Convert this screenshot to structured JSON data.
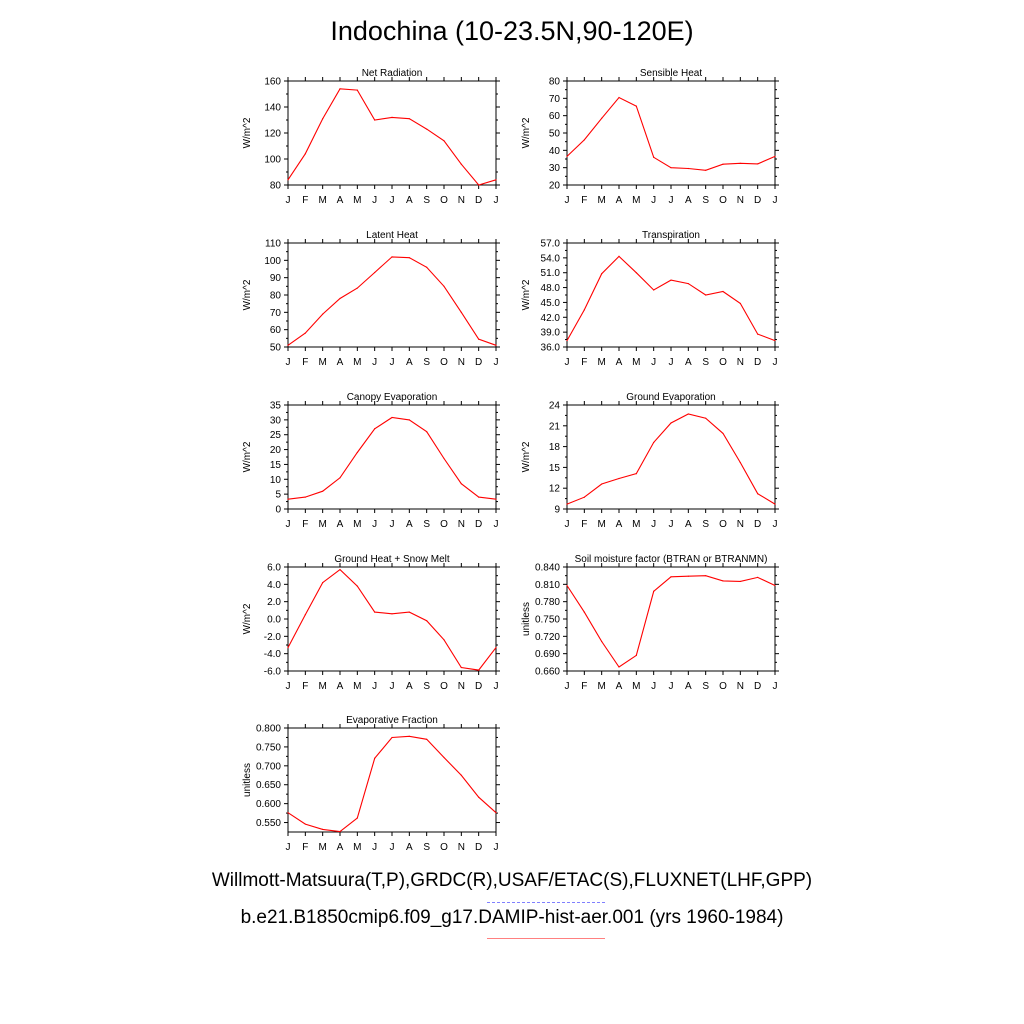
{
  "title": "Indochina (10-23.5N,90-120E)",
  "footer": {
    "line1": "Willmott-Matsuura(T,P),GRDC(R),USAF/ETAC(S),FLUXNET(LHF,GPP)",
    "line2": "b.e21.B1850cmip6.f09_g17.DAMIP-hist-aer.001 (yrs 1960-1984)"
  },
  "colors": {
    "series": "#ff0000",
    "obs_legend": "#8080ff",
    "model_legend": "#ff8080",
    "axes": "#000000"
  },
  "chart_data": [
    {
      "type": "line",
      "title": "Net Radiation",
      "ylabel": "W/m^2",
      "x": [
        "J",
        "F",
        "M",
        "A",
        "M",
        "J",
        "J",
        "A",
        "S",
        "O",
        "N",
        "D",
        "J"
      ],
      "ylim": [
        80,
        160
      ],
      "yticks": [
        "80",
        "100",
        "120",
        "140",
        "160"
      ],
      "series": [
        {
          "values": [
            84,
            104,
            131,
            154,
            153,
            130,
            132,
            131,
            123,
            114,
            96,
            80,
            84
          ]
        }
      ]
    },
    {
      "type": "line",
      "title": "Sensible Heat",
      "ylabel": "W/m^2",
      "x": [
        "J",
        "F",
        "M",
        "A",
        "M",
        "J",
        "J",
        "A",
        "S",
        "O",
        "N",
        "D",
        "J"
      ],
      "ylim": [
        20,
        80
      ],
      "yticks": [
        "20",
        "30",
        "40",
        "50",
        "60",
        "70",
        "80"
      ],
      "series": [
        {
          "values": [
            36.5,
            46,
            58.5,
            70.5,
            65.5,
            36,
            30,
            29.5,
            28.5,
            32,
            32.5,
            32.2,
            36.5
          ]
        }
      ]
    },
    {
      "type": "line",
      "title": "Latent Heat",
      "ylabel": "W/m^2",
      "x": [
        "J",
        "F",
        "M",
        "A",
        "M",
        "J",
        "J",
        "A",
        "S",
        "O",
        "N",
        "D",
        "J"
      ],
      "ylim": [
        50,
        110
      ],
      "yticks": [
        "50",
        "60",
        "70",
        "80",
        "90",
        "100",
        "110"
      ],
      "series": [
        {
          "values": [
            51,
            58,
            69,
            78,
            84,
            93,
            102,
            101.5,
            96,
            85,
            70,
            54.5,
            51
          ]
        }
      ]
    },
    {
      "type": "line",
      "title": "Transpiration",
      "ylabel": "W/m^2",
      "x": [
        "J",
        "F",
        "M",
        "A",
        "M",
        "J",
        "J",
        "A",
        "S",
        "O",
        "N",
        "D",
        "J"
      ],
      "ylim": [
        36,
        57
      ],
      "yticks": [
        "36.0",
        "39.0",
        "42.0",
        "45.0",
        "48.0",
        "51.0",
        "54.0",
        "57.0"
      ],
      "series": [
        {
          "values": [
            37.3,
            43.5,
            50.8,
            54.3,
            51,
            47.5,
            49.5,
            48.8,
            46.5,
            47.2,
            44.8,
            38.6,
            37.3
          ]
        }
      ]
    },
    {
      "type": "line",
      "title": "Canopy Evaporation",
      "ylabel": "W/m^2",
      "x": [
        "J",
        "F",
        "M",
        "A",
        "M",
        "J",
        "J",
        "A",
        "S",
        "O",
        "N",
        "D",
        "J"
      ],
      "ylim": [
        0,
        35
      ],
      "yticks": [
        "0",
        "5",
        "10",
        "15",
        "20",
        "25",
        "30",
        "35"
      ],
      "series": [
        {
          "values": [
            3.3,
            4,
            6,
            10.5,
            19,
            27,
            30.8,
            30,
            26,
            17,
            8.5,
            4,
            3.3
          ]
        }
      ]
    },
    {
      "type": "line",
      "title": "Ground Evaporation",
      "ylabel": "W/m^2",
      "x": [
        "J",
        "F",
        "M",
        "A",
        "M",
        "J",
        "J",
        "A",
        "S",
        "O",
        "N",
        "D",
        "J"
      ],
      "ylim": [
        9,
        24
      ],
      "yticks": [
        "9",
        "12",
        "15",
        "18",
        "21",
        "24"
      ],
      "series": [
        {
          "values": [
            9.7,
            10.7,
            12.6,
            13.4,
            14.1,
            18.6,
            21.4,
            22.7,
            22.1,
            19.9,
            15.7,
            11.2,
            9.7
          ]
        }
      ]
    },
    {
      "type": "line",
      "title": "Ground Heat + Snow Melt",
      "ylabel": "W/m^2",
      "x": [
        "J",
        "F",
        "M",
        "A",
        "M",
        "J",
        "J",
        "A",
        "S",
        "O",
        "N",
        "D",
        "J"
      ],
      "ylim": [
        -6,
        6
      ],
      "yticks": [
        "-6.0",
        "-4.0",
        "-2.0",
        "0.0",
        "2.0",
        "4.0",
        "6.0"
      ],
      "series": [
        {
          "values": [
            -3.3,
            0.5,
            4.2,
            5.7,
            3.8,
            0.8,
            0.6,
            0.8,
            -0.2,
            -2.4,
            -5.6,
            -5.9,
            -3.3
          ]
        }
      ]
    },
    {
      "type": "line",
      "title": "Soil moisture factor (BTRAN or BTRANMN)",
      "ylabel": "unitless",
      "x": [
        "J",
        "F",
        "M",
        "A",
        "M",
        "J",
        "J",
        "A",
        "S",
        "O",
        "N",
        "D",
        "J"
      ],
      "ylim": [
        0.66,
        0.84
      ],
      "yticks": [
        "0.660",
        "0.690",
        "0.720",
        "0.750",
        "0.780",
        "0.810",
        "0.840"
      ],
      "series": [
        {
          "values": [
            0.808,
            0.762,
            0.711,
            0.667,
            0.687,
            0.798,
            0.823,
            0.824,
            0.825,
            0.816,
            0.815,
            0.822,
            0.808
          ]
        }
      ]
    },
    {
      "type": "line",
      "title": "Evaporative Fraction",
      "ylabel": "unitless",
      "x": [
        "J",
        "F",
        "M",
        "A",
        "M",
        "J",
        "J",
        "A",
        "S",
        "O",
        "N",
        "D",
        "J"
      ],
      "ylim": [
        0.525,
        0.8
      ],
      "yticks": [
        "0.550",
        "0.600",
        "0.650",
        "0.700",
        "0.750",
        "0.800"
      ],
      "series": [
        {
          "values": [
            0.576,
            0.546,
            0.532,
            0.526,
            0.562,
            0.72,
            0.775,
            0.778,
            0.77,
            0.722,
            0.675,
            0.617,
            0.576
          ]
        }
      ]
    }
  ]
}
